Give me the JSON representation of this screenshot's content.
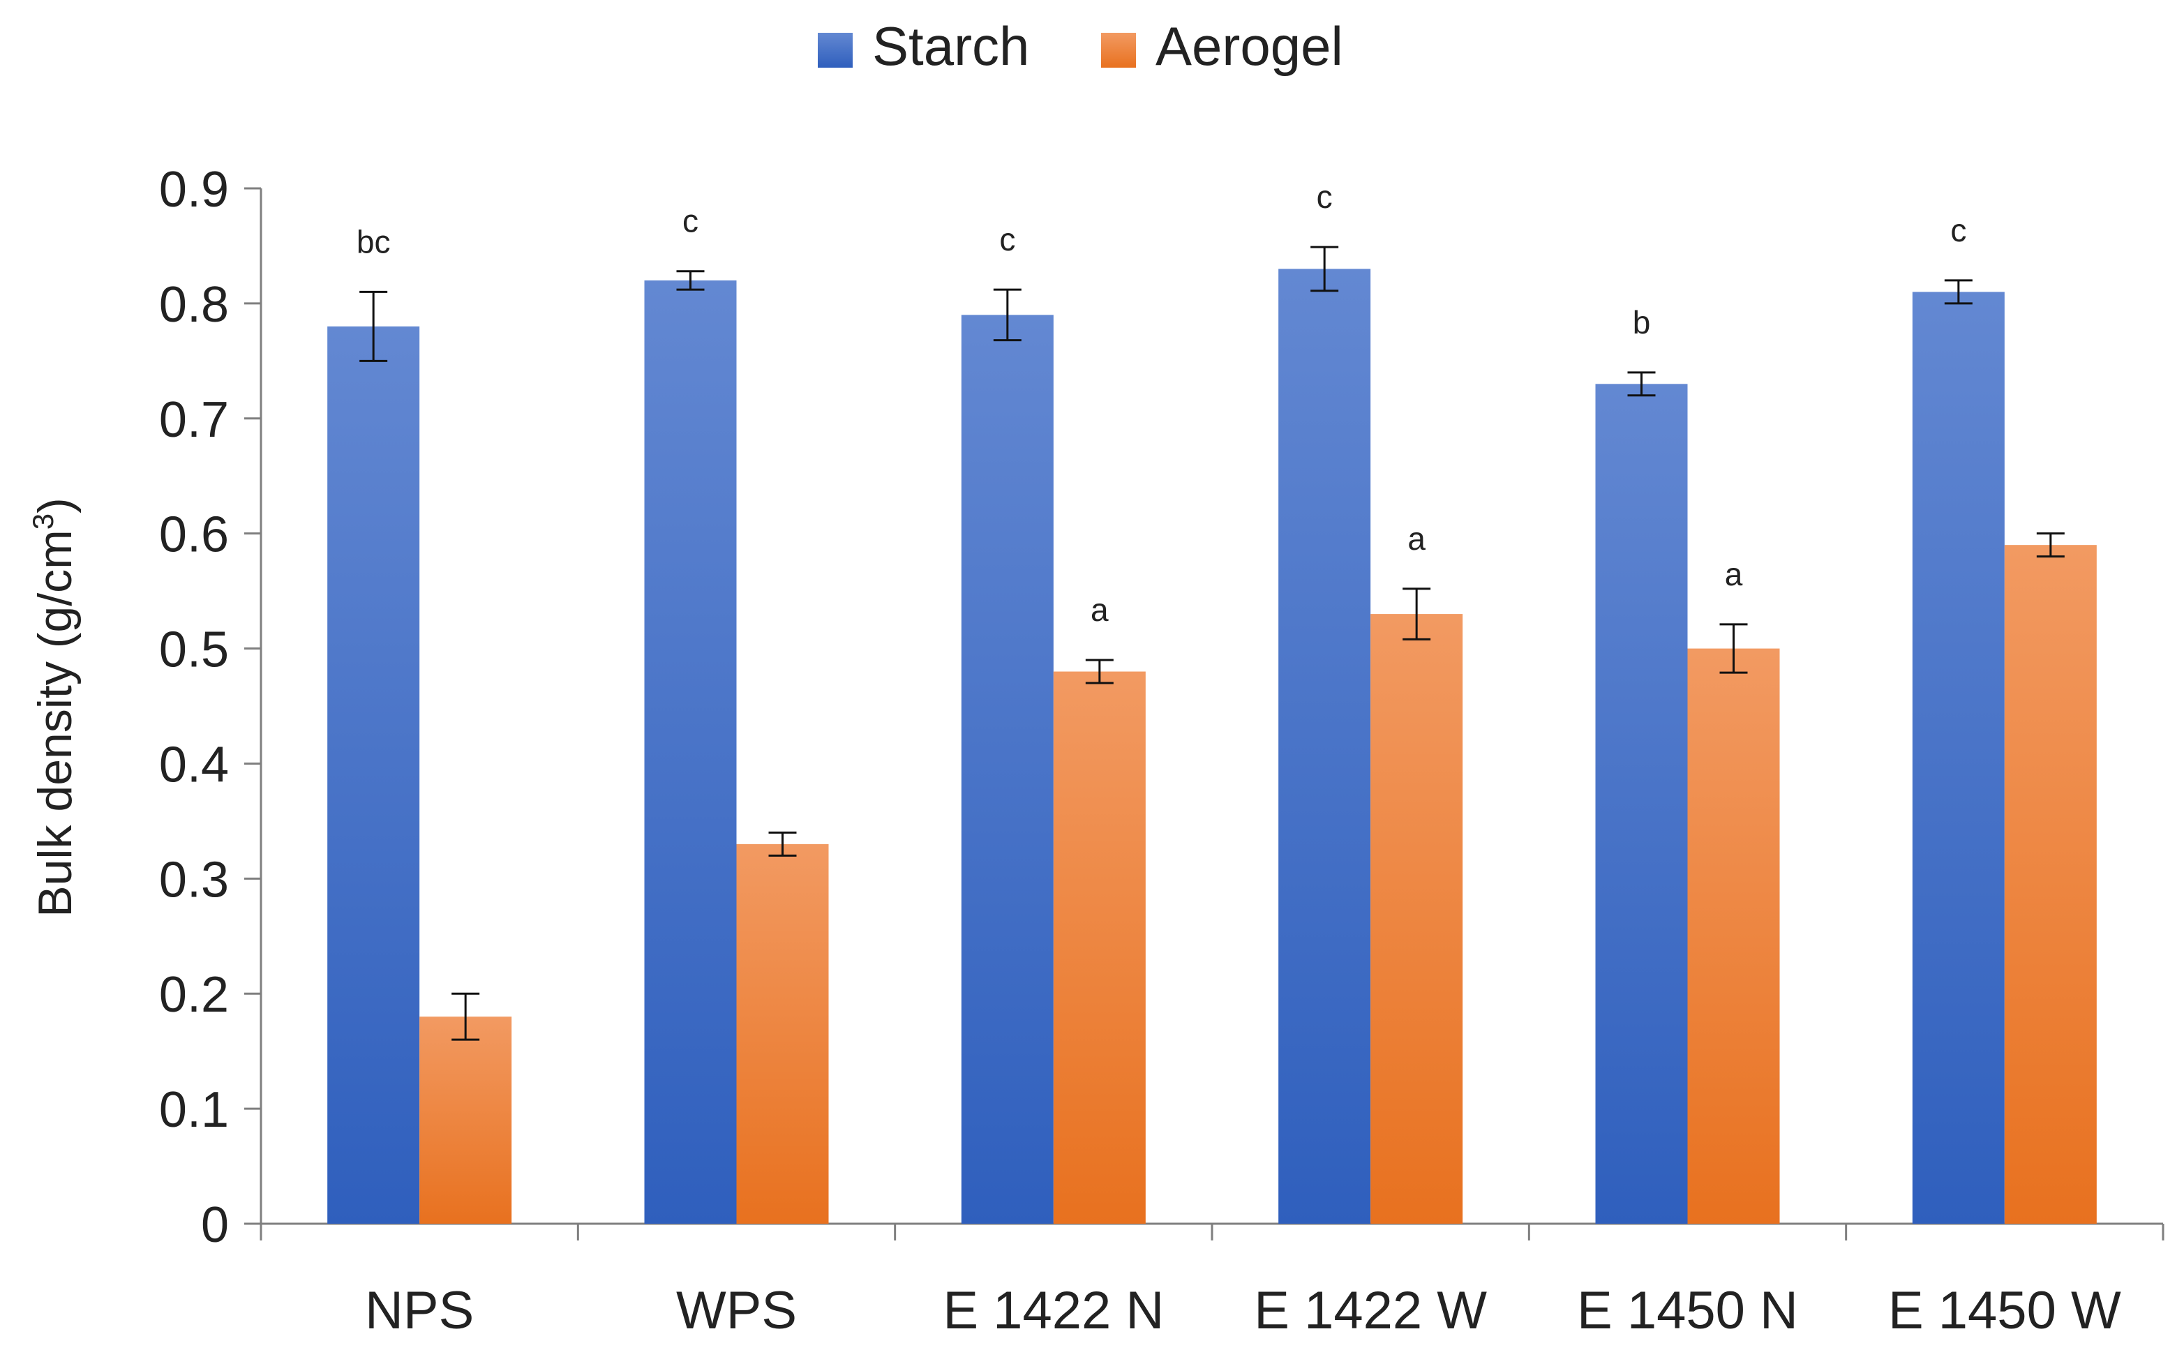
{
  "chart_data": {
    "type": "bar",
    "title": "",
    "xlabel": "",
    "ylabel": "Bulk density (g/cm",
    "ylabel_sup": "3",
    "ylabel_close": ")",
    "ylim": [
      0,
      0.9
    ],
    "yticks": [
      0,
      0.1,
      0.2,
      0.3,
      0.4,
      0.5,
      0.6,
      0.7,
      0.8,
      0.9
    ],
    "ytick_labels": [
      "0",
      "0.1",
      "0.2",
      "0.3",
      "0.4",
      "0.5",
      "0.6",
      "0.7",
      "0.8",
      "0.9"
    ],
    "grid": false,
    "legend": "top-center",
    "categories": [
      "NPS",
      "WPS",
      "E 1422 N",
      "E 1422 W",
      "E 1450 N",
      "E 1450 W"
    ],
    "series": [
      {
        "name": "Starch",
        "color": "#4472C4",
        "values": [
          0.78,
          0.82,
          0.79,
          0.83,
          0.73,
          0.81
        ],
        "errors": [
          0.03,
          0.008,
          0.022,
          0.019,
          0.01,
          0.01
        ],
        "annotations": [
          "bc",
          "c",
          "c",
          "c",
          "b",
          "c"
        ]
      },
      {
        "name": "Aerogel",
        "color": "#ED7D31",
        "values": [
          0.18,
          0.33,
          0.48,
          0.53,
          0.5,
          0.59
        ],
        "errors": [
          0.02,
          0.01,
          0.01,
          0.022,
          0.021,
          0.01
        ],
        "annotations": [
          "",
          "",
          "a",
          "a",
          "a",
          ""
        ]
      }
    ]
  }
}
